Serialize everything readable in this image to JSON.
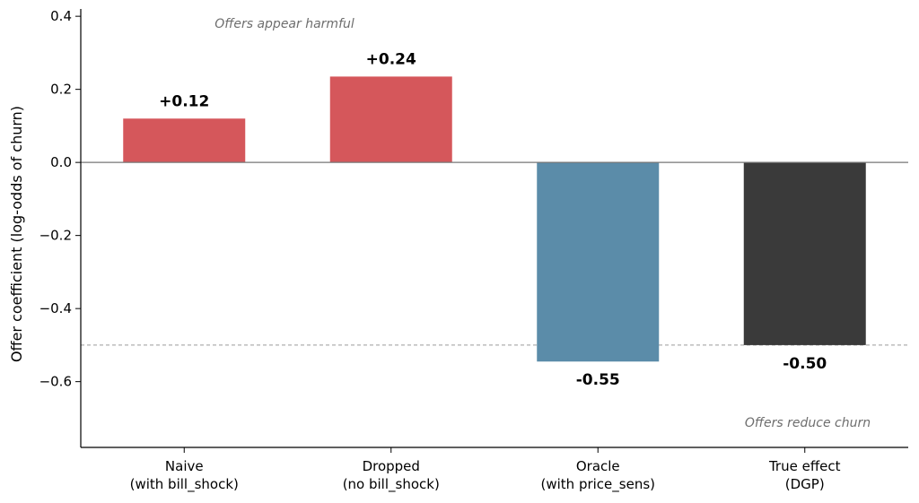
{
  "chart_data": {
    "type": "bar",
    "categories": [
      [
        "Naive",
        "(with bill_shock)"
      ],
      [
        "Dropped",
        "(no bill_shock)"
      ],
      [
        "Oracle",
        "(with price_sens)"
      ],
      [
        "True effect",
        "(DGP)"
      ]
    ],
    "values": [
      0.12,
      0.235,
      -0.545,
      -0.5
    ],
    "value_labels": [
      "+0.12",
      "+0.24",
      "-0.55",
      "-0.50"
    ],
    "colors": [
      "#d5575b",
      "#d5575b",
      "#5b8ca9",
      "#3a3a3a"
    ],
    "ylabel": "Offer coefficient (log-odds of churn)",
    "ylim": [
      -0.78,
      0.42
    ],
    "yticks": [
      0.4,
      0.2,
      0.0,
      -0.2,
      -0.4,
      -0.6
    ],
    "ytick_labels": [
      "0.4",
      "0.2",
      "0.0",
      "−0.2",
      "−0.4",
      "−0.6"
    ],
    "reference_line": -0.5,
    "annotations": {
      "top": "Offers appear harmful",
      "bottom": "Offers reduce churn"
    },
    "grid": false
  }
}
